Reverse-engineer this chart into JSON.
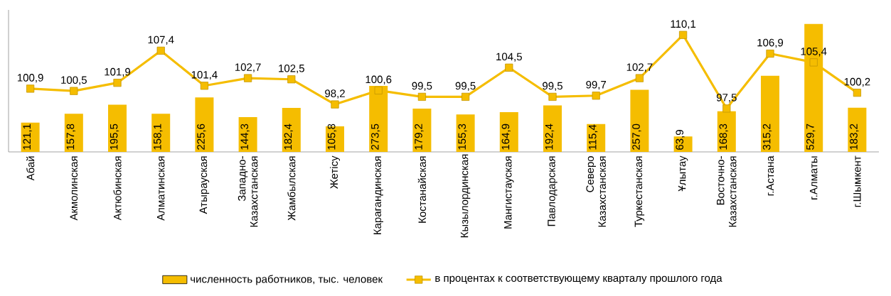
{
  "chart_data": {
    "type": "bar",
    "categories": [
      "Абай",
      "Акмолинская",
      "Актюбинская",
      "Алматинская",
      "Атырауская",
      "Западно-Казахстанская",
      "Жамбылская",
      "Жетісу",
      "Карагандинская",
      "Костанайская",
      "Кызылординская",
      "Мангистауская",
      "Павлодарская",
      "Северо Казахстанская",
      "Туркестанская",
      "Ұлытау",
      "Восточно-Казахстанская",
      "г.Астана",
      "г.Алматы",
      "г.Шымкент"
    ],
    "series": [
      {
        "name": "численность работников, тыс. человек",
        "color": "#f5bd00",
        "values": [
          121.1,
          157.8,
          195.5,
          158.1,
          225.6,
          144.3,
          182.4,
          105.8,
          273.5,
          179.2,
          155.3,
          164.9,
          192.4,
          115.4,
          257.0,
          63.9,
          168.3,
          315.2,
          529.7,
          183.2
        ],
        "value_labels": [
          "121,1",
          "157,8",
          "195,5",
          "158,1",
          "225,6",
          "144,3",
          "182,4",
          "105,8",
          "273,5",
          "179,2",
          "155,3",
          "164,9",
          "192,4",
          "115,4",
          "257,0",
          "63,9",
          "168,3",
          "315,2",
          "529,7",
          "183,2"
        ]
      },
      {
        "name": "в процентах к соответствующему кварталу прошлого года",
        "type": "line",
        "axis": "y2",
        "color": "#f5bd00",
        "values": [
          100.9,
          100.5,
          101.9,
          107.4,
          101.4,
          102.7,
          102.5,
          98.2,
          100.6,
          99.5,
          99.5,
          104.5,
          99.5,
          99.7,
          102.7,
          110.1,
          97.5,
          106.9,
          105.4,
          100.2
        ],
        "value_labels": [
          "100,9",
          "100,5",
          "101,9",
          "107,4",
          "101,4",
          "102,7",
          "102,5",
          "98,2",
          "100,6",
          "99,5",
          "99,5",
          "104,5",
          "99,5",
          "99,7",
          "102,7",
          "110,1",
          "97,5",
          "106,9",
          "105,4",
          "100,2"
        ]
      }
    ],
    "legend": "bottom",
    "tick_labels": "x",
    "marker": "square"
  }
}
